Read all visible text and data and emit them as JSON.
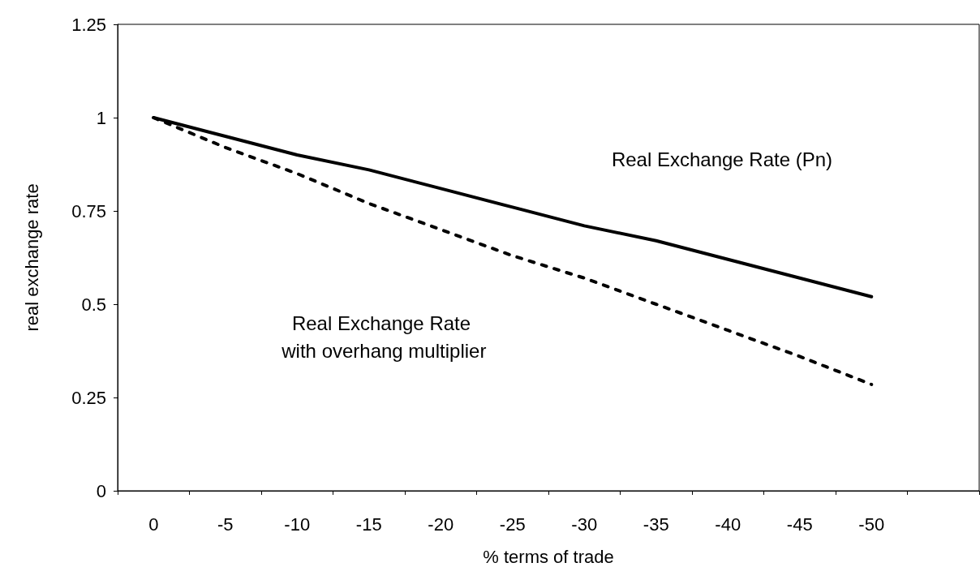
{
  "chart_data": {
    "type": "line",
    "xlabel": "% terms of trade",
    "ylabel": "real exchange rate",
    "categories": [
      "0",
      "-5",
      "-10",
      "-15",
      "-20",
      "-25",
      "-30",
      "-35",
      "-40",
      "-45",
      "-50",
      null
    ],
    "series": [
      {
        "color": "#000000",
        "line_style": "solid",
        "values": [
          1,
          0.95,
          0.9,
          0.86,
          0.81,
          0.76,
          0.71,
          0.67,
          0.62,
          0.57,
          0.52,
          null
        ]
      },
      {
        "color": "#000000",
        "line_style": "dashed",
        "values": [
          1,
          0.92,
          0.85,
          0.77,
          0.7,
          0.63,
          0.57,
          0.5,
          0.43,
          0.36,
          0.285,
          null
        ]
      }
    ],
    "ylim": [
      0,
      1.25
    ],
    "yticks": [
      0,
      0.25,
      0.5,
      0.75,
      1,
      1.25
    ],
    "grid": false,
    "marker": "none",
    "annotations": [
      "Real Exchange Rate (Pn)",
      "Real Exchange Rate\n with overhang multiplier"
    ]
  }
}
